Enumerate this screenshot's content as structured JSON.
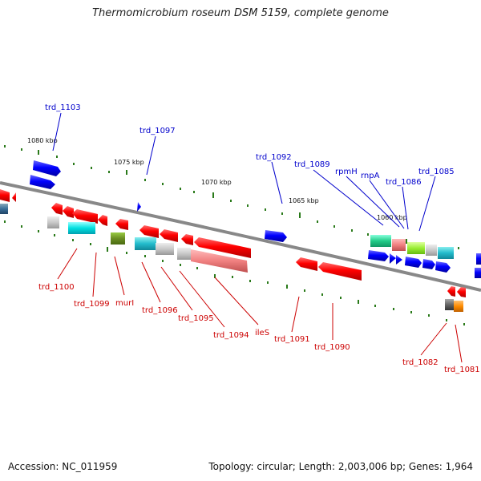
{
  "title": "Thermomicrobium roseum DSM 5159, complete genome",
  "footer": {
    "accession": "Accession: NC_011959",
    "summary": "Topology: circular; Length: 2,003,006 bp; Genes: 1,964"
  },
  "colors": {
    "backbone": "#888888",
    "forward_label": "#0000cc",
    "reverse_label": "#cc0000",
    "tick": "#2a7a1a"
  },
  "scale_labels": [
    "1080 kbp",
    "1075 kbp",
    "1070 kbp",
    "1065 kbp",
    "1060 kbp"
  ],
  "forward_genes": [
    "trd_1103",
    "trd_1097",
    "trd_1092",
    "trd_1089",
    "rpmH",
    "rnpA",
    "trd_1086",
    "trd_1085"
  ],
  "reverse_genes": [
    "trd_1100",
    "trd_1099",
    "murI",
    "trd_1096",
    "trd_1095",
    "trd_1094",
    "ileS",
    "trd_1091",
    "trd_1090",
    "trd_1082",
    "trd_1081"
  ]
}
